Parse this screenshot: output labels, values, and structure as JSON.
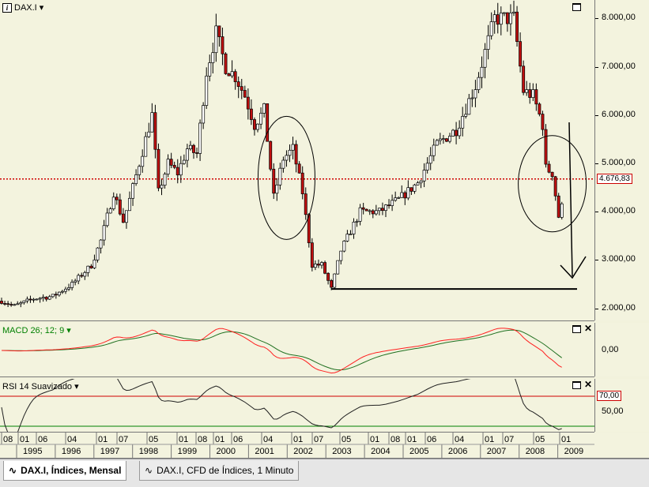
{
  "window": {
    "instrument_label": "DAX.I"
  },
  "main_axis": {
    "labels": [
      "8.000,00",
      "7.000,00",
      "6.000,00",
      "5.000,00",
      "4.000,00",
      "3.000,00",
      "2.000,00"
    ],
    "values": [
      8000,
      7000,
      6000,
      5000,
      4000,
      3000,
      2000
    ],
    "ylim": [
      1880,
      8250
    ]
  },
  "price_line": {
    "label": "4.676,83",
    "value": 4676.83,
    "color": "#d00000"
  },
  "support_line": {
    "value": 2400,
    "color": "#000000"
  },
  "macd": {
    "title": "MACD 26; 12; 9",
    "axis_label": "0,00",
    "title_color": "#008000",
    "macd_color": "#ff2020",
    "signal_color": "#207020"
  },
  "rsi": {
    "title": "RSI 14 Suavizado",
    "labels": [
      "70,00",
      "50,00"
    ],
    "upper_color": "#d00000",
    "lower_color": "#008000"
  },
  "xaxis": {
    "months": [
      "08",
      "01",
      "06",
      "04",
      "01",
      "07",
      "05",
      "01",
      "08",
      "01",
      "06",
      "04",
      "01",
      "07",
      "05",
      "01",
      "08",
      "01",
      "06",
      "04",
      "01",
      "07",
      "05",
      "01"
    ],
    "years": [
      "1995",
      "1996",
      "1997",
      "1998",
      "1999",
      "2000",
      "2001",
      "2002",
      "2003",
      "2004",
      "2005",
      "2006",
      "2007",
      "2008",
      "2009"
    ]
  },
  "tabs": [
    {
      "label": "DAX.I, Índices, Mensal",
      "active": true
    },
    {
      "label": "DAX.I, CFD de Índices, 1 Minuto",
      "active": false
    }
  ],
  "chart_data": {
    "type": "candlestick",
    "title": "DAX.I",
    "ylabel": "",
    "ylim": [
      1880,
      8250
    ],
    "x_years": [
      1995,
      1996,
      1997,
      1998,
      1999,
      2000,
      2001,
      2002,
      2003,
      2004,
      2005,
      2006,
      2007,
      2008,
      2009
    ],
    "close_path": [
      [
        "1994-08",
        2150
      ],
      [
        "1994-12",
        2050
      ],
      [
        "1995-06",
        2200
      ],
      [
        "1995-12",
        2250
      ],
      [
        "1996-06",
        2500
      ],
      [
        "1996-12",
        2890
      ],
      [
        "1997-03",
        3400
      ],
      [
        "1997-07",
        4400
      ],
      [
        "1997-10",
        3800
      ],
      [
        "1997-12",
        4250
      ],
      [
        "1998-03",
        5000
      ],
      [
        "1998-07",
        6000
      ],
      [
        "1998-09",
        4400
      ],
      [
        "1998-12",
        5000
      ],
      [
        "1999-03",
        4800
      ],
      [
        "1999-06",
        5300
      ],
      [
        "1999-09",
        5200
      ],
      [
        "1999-12",
        6900
      ],
      [
        "2000-03",
        7700
      ],
      [
        "2000-06",
        7000
      ],
      [
        "2000-09",
        6800
      ],
      [
        "2000-12",
        6400
      ],
      [
        "2001-03",
        5800
      ],
      [
        "2001-06",
        6100
      ],
      [
        "2001-09",
        4300
      ],
      [
        "2001-12",
        5100
      ],
      [
        "2002-03",
        5300
      ],
      [
        "2002-06",
        4400
      ],
      [
        "2002-09",
        2900
      ],
      [
        "2002-12",
        2900
      ],
      [
        "2003-03",
        2400
      ],
      [
        "2003-06",
        3200
      ],
      [
        "2003-12",
        4000
      ],
      [
        "2004-06",
        4000
      ],
      [
        "2004-12",
        4250
      ],
      [
        "2005-06",
        4600
      ],
      [
        "2005-12",
        5400
      ],
      [
        "2006-06",
        5700
      ],
      [
        "2006-12",
        6600
      ],
      [
        "2007-06",
        8000
      ],
      [
        "2007-12",
        8000
      ],
      [
        "2008-03",
        6500
      ],
      [
        "2008-06",
        6400
      ],
      [
        "2008-09",
        5800
      ],
      [
        "2008-10",
        4900
      ],
      [
        "2008-12",
        4800
      ],
      [
        "2009-02",
        3900
      ],
      [
        "2009-03",
        4100
      ]
    ],
    "annotations": [
      "circle 2001-2002",
      "circle 2008-2009",
      "arrow down 2009",
      "horizontal support ~2400"
    ]
  }
}
